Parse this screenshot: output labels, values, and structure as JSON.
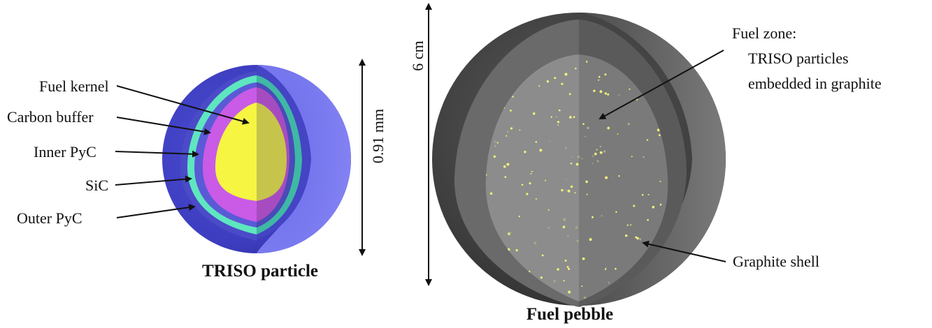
{
  "triso": {
    "title": "TRISO particle",
    "dimension": "0.91 mm",
    "layers": [
      {
        "label": "Fuel kernel",
        "color": "#f5f542"
      },
      {
        "label": "Carbon buffer",
        "color": "#c95be6"
      },
      {
        "label": "Inner PyC",
        "color": "#5a5ad6"
      },
      {
        "label": "SiC",
        "color": "#5ee6bf"
      },
      {
        "label": "Outer PyC",
        "color": "#4f4fc8"
      }
    ]
  },
  "pebble": {
    "title": "Fuel pebble",
    "dimension": "6 cm",
    "fuel_zone_label": [
      "Fuel zone:",
      "TRISO particles",
      "embedded in graphite"
    ],
    "shell_label": "Graphite shell",
    "colors": {
      "shell": "#4d4d4d",
      "fuel_zone": "#8c8c8c",
      "particles": "#f0f07a"
    }
  }
}
